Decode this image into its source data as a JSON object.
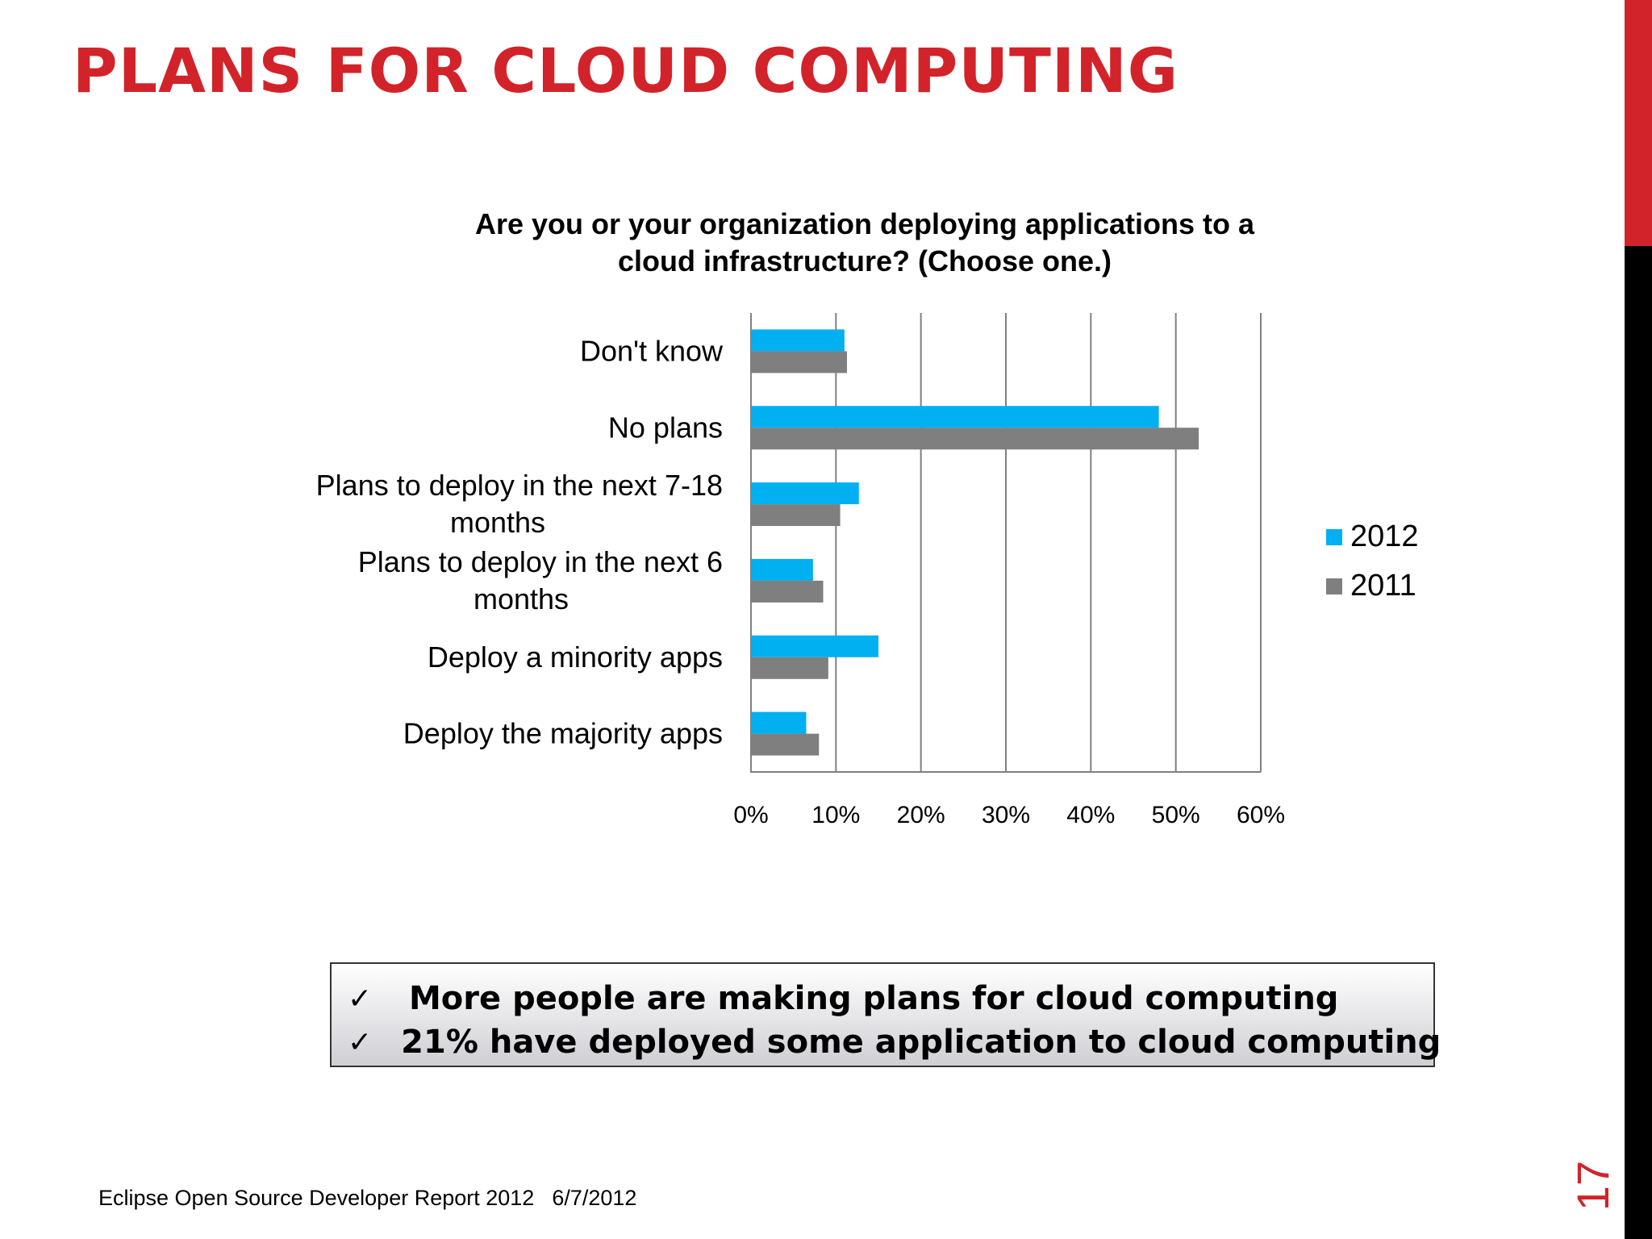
{
  "slide": {
    "title": "PLANS FOR CLOUD COMPUTING",
    "page_number": "17",
    "accent_color": "#d2232a"
  },
  "chart_data": {
    "type": "bar",
    "orientation": "horizontal",
    "title_lines": [
      "Are you or your organization deploying applications to a",
      "cloud infrastructure? (Choose one.)"
    ],
    "categories": [
      "Don't know",
      "No plans",
      "Plans to deploy in the next 7-18 months",
      "Plans to deploy in the next 6 months",
      "Deploy a minority apps",
      "Deploy the majority apps"
    ],
    "category_label_lines": [
      [
        "Don't know"
      ],
      [
        "No plans"
      ],
      [
        "Plans to deploy in the next 7-18",
        "months"
      ],
      [
        "Plans to deploy in the next 6",
        "months"
      ],
      [
        "Deploy a minority apps"
      ],
      [
        "Deploy the majority apps"
      ]
    ],
    "series": [
      {
        "name": "2012",
        "color": "#00b0f0",
        "values": [
          11,
          48,
          12.7,
          7.3,
          15,
          6.5
        ]
      },
      {
        "name": "2011",
        "color": "#7f7f7f",
        "values": [
          11.3,
          52.7,
          10.5,
          8.5,
          9.1,
          8
        ]
      }
    ],
    "xlim": [
      0,
      60
    ],
    "xticks": [
      "0%",
      "10%",
      "20%",
      "30%",
      "40%",
      "50%",
      "60%"
    ],
    "grid": true,
    "legend_position": "right"
  },
  "callout": {
    "check_symbol": "✓",
    "items": [
      "More people are making plans for cloud computing",
      "21% have deployed some application to cloud computing"
    ]
  },
  "footer": {
    "report": "Eclipse Open Source Developer Report 2012",
    "date": "6/7/2012"
  }
}
